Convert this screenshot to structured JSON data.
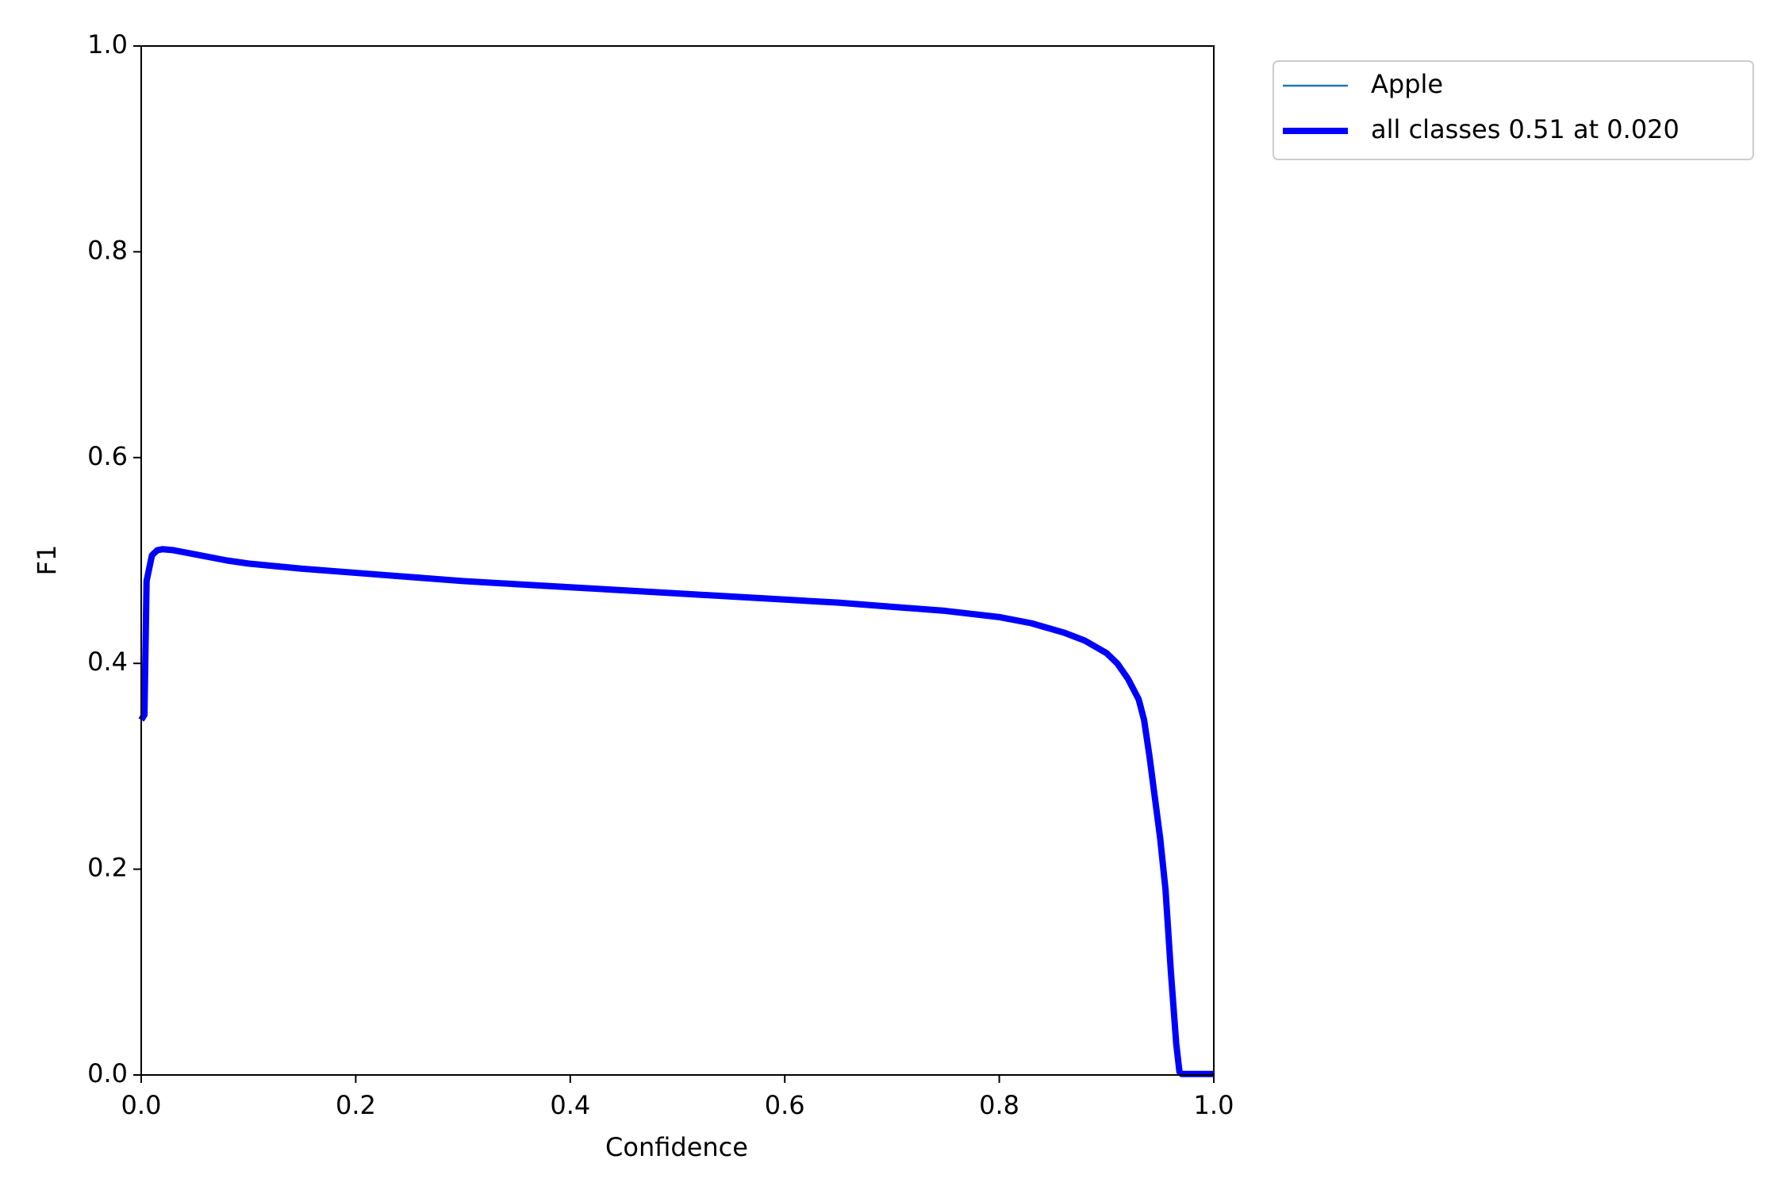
{
  "chart_data": {
    "type": "line",
    "xlabel": "Confidence",
    "ylabel": "F1",
    "x": [
      0,
      0.003,
      0.005,
      0.01,
      0.015,
      0.02,
      0.03,
      0.05,
      0.08,
      0.1,
      0.15,
      0.2,
      0.25,
      0.3,
      0.35,
      0.4,
      0.45,
      0.5,
      0.55,
      0.6,
      0.65,
      0.7,
      0.75,
      0.8,
      0.83,
      0.86,
      0.88,
      0.9,
      0.91,
      0.92,
      0.93,
      0.935,
      0.94,
      0.945,
      0.95,
      0.955,
      0.96,
      0.965,
      0.968,
      0.97,
      0.98,
      1.0
    ],
    "series": [
      {
        "name": "Apple",
        "color": "#1f77b4",
        "values": [
          0.345,
          0.35,
          0.48,
          0.505,
          0.51,
          0.511,
          0.51,
          0.506,
          0.5,
          0.497,
          0.492,
          0.488,
          0.484,
          0.48,
          0.477,
          0.474,
          0.471,
          0.468,
          0.465,
          0.462,
          0.459,
          0.455,
          0.451,
          0.445,
          0.439,
          0.43,
          0.422,
          0.41,
          0.4,
          0.385,
          0.365,
          0.345,
          0.31,
          0.27,
          0.23,
          0.18,
          0.1,
          0.03,
          0.003,
          0.001,
          0.001,
          0.001
        ]
      },
      {
        "name": "all classes 0.51 at 0.020",
        "color": "#0000ff",
        "values": [
          0.345,
          0.35,
          0.48,
          0.505,
          0.51,
          0.511,
          0.51,
          0.506,
          0.5,
          0.497,
          0.492,
          0.488,
          0.484,
          0.48,
          0.477,
          0.474,
          0.471,
          0.468,
          0.465,
          0.462,
          0.459,
          0.455,
          0.451,
          0.445,
          0.439,
          0.43,
          0.422,
          0.41,
          0.4,
          0.385,
          0.365,
          0.345,
          0.31,
          0.27,
          0.23,
          0.18,
          0.1,
          0.03,
          0.003,
          0.001,
          0.001,
          0.001
        ]
      }
    ],
    "xlim": [
      0,
      1
    ],
    "ylim": [
      0,
      1
    ],
    "xticks": [
      {
        "value": 0,
        "label": "0.0"
      },
      0.2,
      0.4,
      0.6,
      0.8,
      {
        "value": 1,
        "label": "1.0"
      }
    ],
    "yticks": [
      {
        "value": 0,
        "label": "0.0"
      },
      0.2,
      0.4,
      0.6,
      0.8,
      {
        "value": 1,
        "label": "1.0"
      }
    ],
    "legend": "outside-upper-right"
  }
}
